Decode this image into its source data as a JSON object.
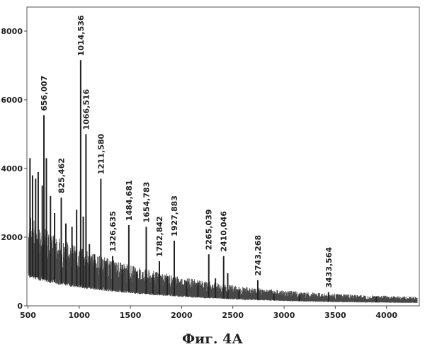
{
  "caption": "Фиг. 4А",
  "chart_data": {
    "type": "line",
    "title": "",
    "xlabel": "",
    "ylabel": "",
    "xlim": [
      490,
      4320
    ],
    "ylim": [
      0,
      8700
    ],
    "grid": false,
    "x_ticks": [
      500,
      1000,
      1500,
      2000,
      2500,
      3000,
      3500,
      4000
    ],
    "y_ticks": [
      0,
      2000,
      4000,
      6000,
      8000
    ],
    "color": "#333333",
    "baseline": [
      [
        500,
        1500
      ],
      [
        600,
        1350
      ],
      [
        700,
        1220
      ],
      [
        800,
        1120
      ],
      [
        900,
        1030
      ],
      [
        1000,
        950
      ],
      [
        1100,
        880
      ],
      [
        1200,
        820
      ],
      [
        1300,
        760
      ],
      [
        1400,
        710
      ],
      [
        1500,
        660
      ],
      [
        1600,
        615
      ],
      [
        1700,
        575
      ],
      [
        1800,
        540
      ],
      [
        1900,
        505
      ],
      [
        2000,
        470
      ],
      [
        2200,
        410
      ],
      [
        2400,
        360
      ],
      [
        2600,
        315
      ],
      [
        2800,
        280
      ],
      [
        3000,
        250
      ],
      [
        3200,
        225
      ],
      [
        3400,
        205
      ],
      [
        3600,
        190
      ],
      [
        3800,
        175
      ],
      [
        4000,
        165
      ],
      [
        4300,
        150
      ]
    ],
    "peaks": [
      {
        "x": 520,
        "y": 4300
      },
      {
        "x": 545,
        "y": 3800
      },
      {
        "x": 575,
        "y": 3700
      },
      {
        "x": 600,
        "y": 3900
      },
      {
        "x": 640,
        "y": 3500
      },
      {
        "x": 656.007,
        "y": 5550,
        "label": "656,007"
      },
      {
        "x": 680,
        "y": 4300
      },
      {
        "x": 720,
        "y": 3200
      },
      {
        "x": 760,
        "y": 2700
      },
      {
        "x": 825.462,
        "y": 3150,
        "label": "825,462"
      },
      {
        "x": 870,
        "y": 2400
      },
      {
        "x": 930,
        "y": 2300
      },
      {
        "x": 975,
        "y": 2800
      },
      {
        "x": 1014.536,
        "y": 7150,
        "label": "1014,536"
      },
      {
        "x": 1040,
        "y": 2600
      },
      {
        "x": 1066.516,
        "y": 5000,
        "label": "1066,516"
      },
      {
        "x": 1100,
        "y": 1800
      },
      {
        "x": 1150,
        "y": 1500
      },
      {
        "x": 1211.58,
        "y": 3700,
        "label": "1211,580"
      },
      {
        "x": 1260,
        "y": 1300
      },
      {
        "x": 1326.635,
        "y": 1450,
        "label": "1326,635"
      },
      {
        "x": 1420,
        "y": 1200
      },
      {
        "x": 1484.681,
        "y": 2350,
        "label": "1484,681"
      },
      {
        "x": 1560,
        "y": 1000
      },
      {
        "x": 1654.783,
        "y": 2300,
        "label": "1654,783"
      },
      {
        "x": 1720,
        "y": 900
      },
      {
        "x": 1782.842,
        "y": 1300,
        "label": "1782,842"
      },
      {
        "x": 1860,
        "y": 850
      },
      {
        "x": 1927.883,
        "y": 1900,
        "label": "1927,883"
      },
      {
        "x": 2050,
        "y": 700
      },
      {
        "x": 2160,
        "y": 650
      },
      {
        "x": 2265.039,
        "y": 1500,
        "label": "2265,039"
      },
      {
        "x": 2330,
        "y": 800
      },
      {
        "x": 2410.046,
        "y": 1450,
        "label": "2410,046"
      },
      {
        "x": 2450,
        "y": 950
      },
      {
        "x": 2560,
        "y": 450
      },
      {
        "x": 2743.268,
        "y": 750,
        "label": "2743,268"
      },
      {
        "x": 2900,
        "y": 350
      },
      {
        "x": 3150,
        "y": 320
      },
      {
        "x": 3433.564,
        "y": 400,
        "label": "3433,564"
      },
      {
        "x": 3900,
        "y": 280
      }
    ]
  }
}
